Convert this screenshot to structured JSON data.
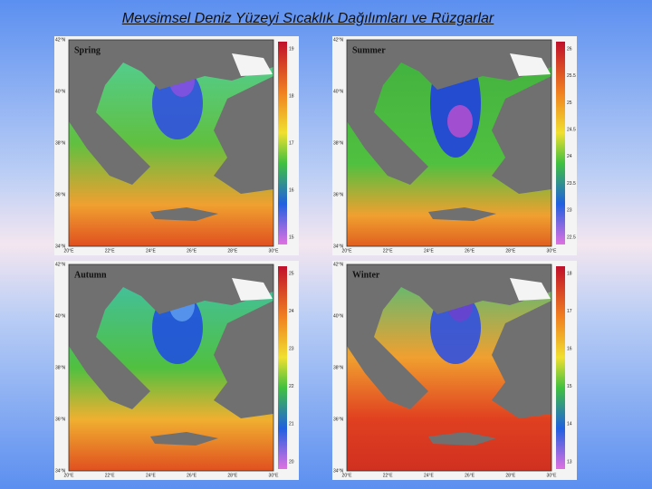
{
  "title": "Mevsimsel Deniz Yüzeyi Sıcaklık Dağılımları ve Rüzgarlar",
  "lat_labels": [
    "42°N",
    "40°N",
    "38°N",
    "36°N",
    "34°N"
  ],
  "lon_labels": [
    "20°E",
    "22°E",
    "24°E",
    "26°E",
    "28°E",
    "30°E"
  ],
  "panels": [
    {
      "name": "Spring",
      "colorbar": [
        19,
        18,
        17,
        16,
        15
      ]
    },
    {
      "name": "Summer",
      "colorbar": [
        26,
        25.5,
        25,
        24.5,
        24,
        23.5,
        23,
        22.5
      ]
    },
    {
      "name": "Autumn",
      "colorbar": [
        25,
        24,
        23,
        22,
        21,
        20
      ]
    },
    {
      "name": "Winter",
      "colorbar": [
        18,
        17,
        16,
        15,
        14,
        13
      ]
    }
  ]
}
